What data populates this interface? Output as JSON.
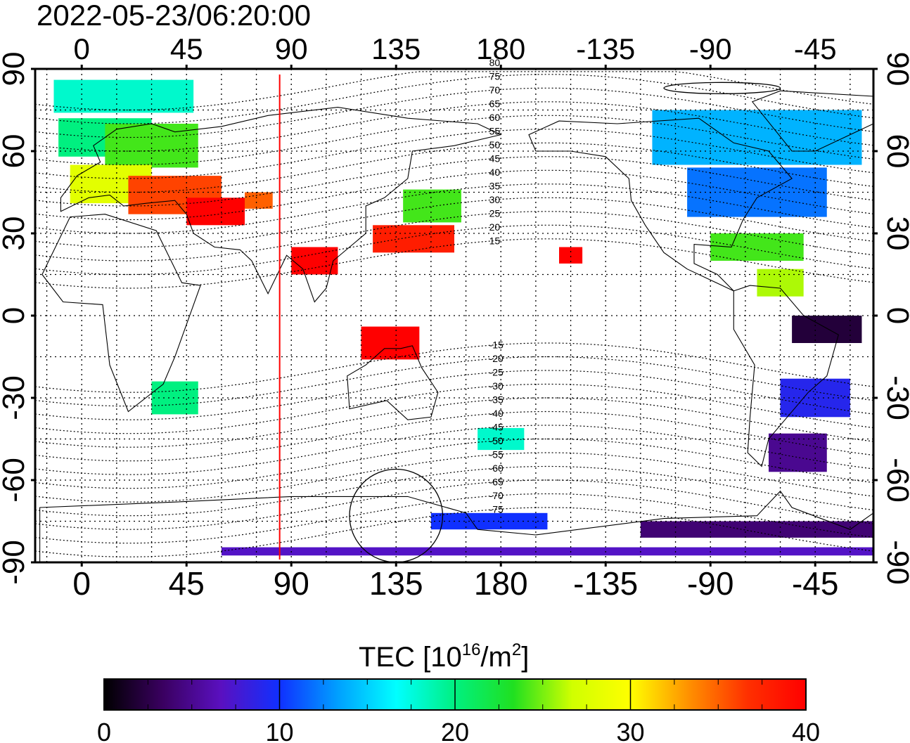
{
  "timestamp": "2022-05-23/06:20:00",
  "lon_ticks": [
    "0",
    "45",
    "90",
    "135",
    "180",
    "-135",
    "-90",
    "-45"
  ],
  "lon_tick_values": [
    0,
    45,
    90,
    135,
    180,
    225,
    270,
    315
  ],
  "lat_ticks_left": [
    "90",
    "60",
    "30",
    "0",
    "-30",
    "-60",
    "-90"
  ],
  "lat_ticks_right": [
    "90",
    "60",
    "30",
    "0",
    "-30",
    "-60",
    "-90"
  ],
  "lat_tick_values": [
    90,
    60,
    30,
    0,
    -30,
    -60,
    -90
  ],
  "map_extent": {
    "lon_min": -20,
    "lon_max": 340,
    "lat_min": -90,
    "lat_max": 90
  },
  "marker_meridian_lon": 85,
  "contour_labels": [
    "80",
    "75",
    "70",
    "65",
    "60",
    "55",
    "50",
    "45",
    "40",
    "35",
    "30",
    "25",
    "20",
    "15",
    "-15",
    "-20",
    "-25",
    "-30",
    "-35",
    "-40",
    "-45",
    "-50",
    "-55",
    "-60",
    "-65",
    "-70",
    "-75"
  ],
  "colorbar": {
    "title_main": "TEC  [10",
    "title_sup1": "16",
    "title_mid": "/m",
    "title_sup2": "2",
    "title_end": "]",
    "ticks": [
      "0",
      "10",
      "20",
      "30",
      "40"
    ],
    "tick_values": [
      0,
      10,
      20,
      30,
      40
    ],
    "min": 0,
    "max": 40,
    "stops": [
      "#000000",
      "#3a0060",
      "#5a10c0",
      "#1030ff",
      "#00a0ff",
      "#00ffff",
      "#00f080",
      "#20e020",
      "#d0ff00",
      "#ffff00",
      "#ff9000",
      "#ff3000",
      "#ff0000"
    ]
  },
  "colors": {
    "frame": "#000000",
    "grid": "#000000",
    "marker": "#ff0000",
    "coast": "#000000"
  },
  "tec_patches": [
    {
      "lon": -12,
      "lat": 80,
      "w": 60,
      "h": 12,
      "tec": 18
    },
    {
      "lon": -10,
      "lat": 65,
      "w": 40,
      "h": 14,
      "tec": 20
    },
    {
      "lon": 10,
      "lat": 62,
      "w": 40,
      "h": 16,
      "tec": 24
    },
    {
      "lon": -5,
      "lat": 48,
      "w": 35,
      "h": 14,
      "tec": 28
    },
    {
      "lon": 20,
      "lat": 44,
      "w": 40,
      "h": 14,
      "tec": 36
    },
    {
      "lon": 45,
      "lat": 38,
      "w": 25,
      "h": 10,
      "tec": 40
    },
    {
      "lon": 70,
      "lat": 42,
      "w": 12,
      "h": 6,
      "tec": 35
    },
    {
      "lon": 90,
      "lat": 20,
      "w": 20,
      "h": 10,
      "tec": 40
    },
    {
      "lon": 120,
      "lat": -10,
      "w": 25,
      "h": 12,
      "tec": 40
    },
    {
      "lon": 125,
      "lat": 28,
      "w": 35,
      "h": 10,
      "tec": 38
    },
    {
      "lon": 138,
      "lat": 40,
      "w": 25,
      "h": 12,
      "tec": 24
    },
    {
      "lon": 30,
      "lat": -30,
      "w": 20,
      "h": 12,
      "tec": 20
    },
    {
      "lon": 205,
      "lat": 22,
      "w": 10,
      "h": 6,
      "tec": 40
    },
    {
      "lon": 245,
      "lat": 65,
      "w": 90,
      "h": 20,
      "tec": 14
    },
    {
      "lon": 260,
      "lat": 45,
      "w": 60,
      "h": 18,
      "tec": 12
    },
    {
      "lon": 270,
      "lat": 25,
      "w": 40,
      "h": 10,
      "tec": 24
    },
    {
      "lon": 290,
      "lat": 12,
      "w": 20,
      "h": 10,
      "tec": 26
    },
    {
      "lon": 305,
      "lat": -5,
      "w": 30,
      "h": 10,
      "tec": 2
    },
    {
      "lon": 300,
      "lat": -30,
      "w": 30,
      "h": 14,
      "tec": 9
    },
    {
      "lon": 295,
      "lat": -50,
      "w": 25,
      "h": 14,
      "tec": 5
    },
    {
      "lon": 170,
      "lat": -45,
      "w": 20,
      "h": 8,
      "tec": 18
    },
    {
      "lon": 150,
      "lat": -75,
      "w": 50,
      "h": 6,
      "tec": 10
    },
    {
      "lon": 240,
      "lat": -78,
      "w": 100,
      "h": 6,
      "tec": 4
    },
    {
      "lon": 60,
      "lat": -86,
      "w": 280,
      "h": 3,
      "tec": 7
    }
  ]
}
